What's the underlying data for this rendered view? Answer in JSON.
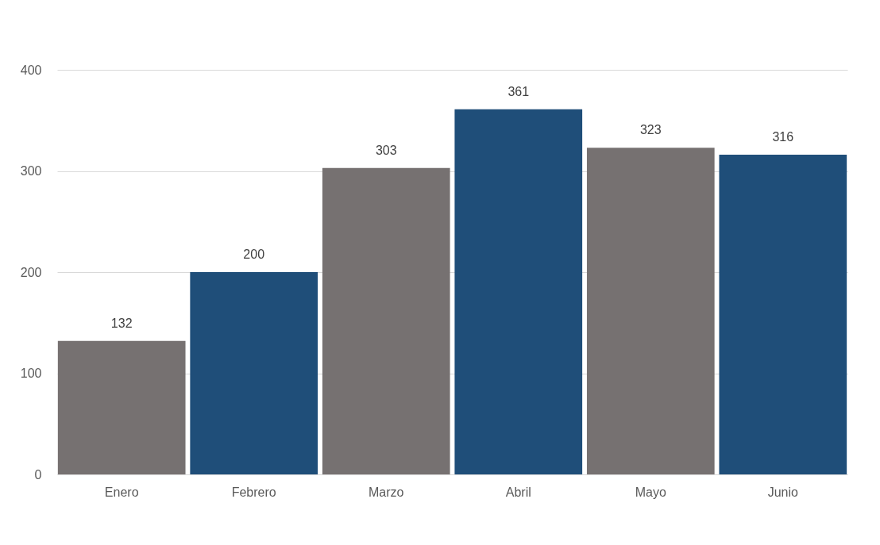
{
  "chart_data": {
    "type": "bar",
    "categories": [
      "Enero",
      "Febrero",
      "Marzo",
      "Abril",
      "Mayo",
      "Junio"
    ],
    "values": [
      132,
      200,
      303,
      361,
      323,
      316
    ],
    "colors": [
      "#767171",
      "#1f4e79",
      "#767171",
      "#1f4e79",
      "#767171",
      "#1f4e79"
    ],
    "ylim": [
      0,
      400
    ],
    "yticks": [
      0,
      100,
      200,
      300,
      400
    ],
    "grid": "y",
    "data_labels": true
  }
}
